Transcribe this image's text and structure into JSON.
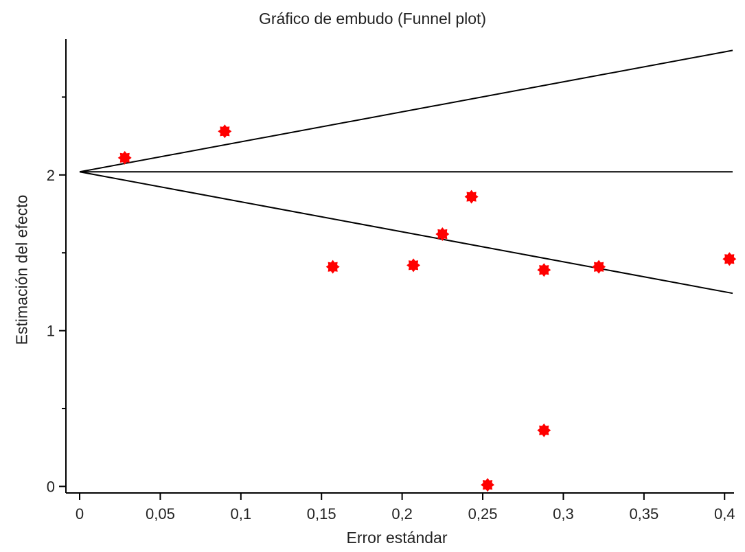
{
  "chart_data": {
    "type": "scatter",
    "title": "Gráfico de embudo (Funnel plot)",
    "xlabel": "Error estándar",
    "ylabel": "Estimación del efecto",
    "xlim": [
      0,
      0.405
    ],
    "ylim": [
      -0.02,
      2.85
    ],
    "grid": false,
    "x_ticks": [
      0,
      0.05,
      0.1,
      0.15,
      0.2,
      0.25,
      0.3,
      0.35,
      0.4
    ],
    "x_tick_labels": [
      "0",
      "0,05",
      "0,1",
      "0,15",
      "0,2",
      "0,25",
      "0,3",
      "0,35",
      "0,4"
    ],
    "y_ticks": [
      0,
      1,
      2
    ],
    "y_tick_labels": [
      "0",
      "1",
      "2"
    ],
    "y_minor_ticks": [
      0.5,
      1.5,
      2.5
    ],
    "series": [
      {
        "marker_color": "#ff0000",
        "points": [
          {
            "x": 0.028,
            "y": 2.11
          },
          {
            "x": 0.09,
            "y": 2.28
          },
          {
            "x": 0.157,
            "y": 1.41
          },
          {
            "x": 0.207,
            "y": 1.42
          },
          {
            "x": 0.225,
            "y": 1.62
          },
          {
            "x": 0.243,
            "y": 1.86
          },
          {
            "x": 0.253,
            "y": 0.01
          },
          {
            "x": 0.288,
            "y": 1.39
          },
          {
            "x": 0.288,
            "y": 0.36
          },
          {
            "x": 0.322,
            "y": 1.41
          },
          {
            "x": 0.403,
            "y": 1.46
          }
        ]
      }
    ],
    "reference_lines": [
      {
        "kind": "pooled-estimate",
        "x": [
          0,
          0.405
        ],
        "y": [
          2.02,
          2.02
        ]
      },
      {
        "kind": "upper-limit",
        "x": [
          0,
          0.405
        ],
        "y": [
          2.02,
          2.8
        ]
      },
      {
        "kind": "lower-limit",
        "x": [
          0,
          0.405
        ],
        "y": [
          2.02,
          1.24
        ]
      }
    ],
    "line_color": "#000000"
  }
}
